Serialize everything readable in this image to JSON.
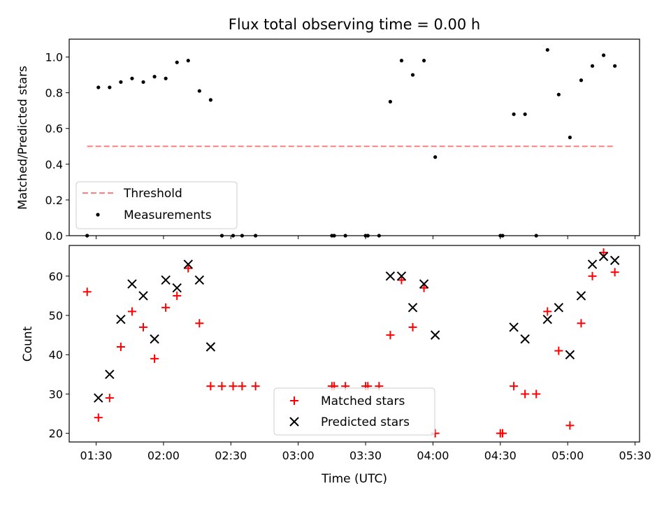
{
  "colors": {
    "threshold": "#ff7f7f",
    "measurements": "#000000",
    "matched": "#ff0000",
    "predicted": "#000000",
    "legend_border": "#cccccc"
  },
  "chart_data": [
    {
      "type": "scatter",
      "title": "Flux total observing time = 0.00 h",
      "ylabel": "Matched/Predicted stars",
      "xlim": [
        "01:18",
        "05:32"
      ],
      "ylim": [
        0,
        1.1
      ],
      "yticks": [
        0.0,
        0.2,
        0.4,
        0.6,
        0.8,
        1.0
      ],
      "ytick_labels": [
        "0.0",
        "0.2",
        "0.4",
        "0.6",
        "0.8",
        "1.0"
      ],
      "xticks": [
        "01:30",
        "02:00",
        "02:30",
        "03:00",
        "03:30",
        "04:00",
        "04:30",
        "05:00",
        "05:30"
      ],
      "legend": {
        "loc": "lower left",
        "entries": [
          "Threshold",
          "Measurements"
        ]
      },
      "series": [
        {
          "name": "Threshold",
          "style": "dashed-line",
          "x": [
            "01:26",
            "05:21"
          ],
          "y": [
            0.5,
            0.5
          ]
        },
        {
          "name": "Measurements",
          "style": "dot",
          "points": [
            [
              "01:26",
              0.0
            ],
            [
              "01:31",
              0.83
            ],
            [
              "01:36",
              0.83
            ],
            [
              "01:41",
              0.86
            ],
            [
              "01:46",
              0.88
            ],
            [
              "01:51",
              0.86
            ],
            [
              "01:56",
              0.89
            ],
            [
              "02:01",
              0.88
            ],
            [
              "02:06",
              0.97
            ],
            [
              "02:11",
              0.98
            ],
            [
              "02:16",
              0.81
            ],
            [
              "02:21",
              0.76
            ],
            [
              "02:26",
              0.0
            ],
            [
              "02:31",
              0.0
            ],
            [
              "02:35",
              0.0
            ],
            [
              "02:41",
              0.0
            ],
            [
              "03:15",
              0.0
            ],
            [
              "03:16",
              0.0
            ],
            [
              "03:21",
              0.0
            ],
            [
              "03:30",
              0.0
            ],
            [
              "03:31",
              0.0
            ],
            [
              "03:36",
              0.0
            ],
            [
              "03:41",
              0.75
            ],
            [
              "03:46",
              0.98
            ],
            [
              "03:51",
              0.9
            ],
            [
              "03:56",
              0.98
            ],
            [
              "04:01",
              0.44
            ],
            [
              "04:30",
              0.0
            ],
            [
              "04:31",
              0.0
            ],
            [
              "04:36",
              0.68
            ],
            [
              "04:41",
              0.68
            ],
            [
              "04:46",
              0.0
            ],
            [
              "04:51",
              1.04
            ],
            [
              "04:56",
              0.79
            ],
            [
              "05:01",
              0.55
            ],
            [
              "05:06",
              0.87
            ],
            [
              "05:11",
              0.95
            ],
            [
              "05:16",
              1.01
            ],
            [
              "05:21",
              0.95
            ]
          ]
        }
      ]
    },
    {
      "type": "scatter",
      "ylabel": "Count",
      "xlabel": "Time (UTC)",
      "xlim": [
        "01:18",
        "05:32"
      ],
      "ylim": [
        17.8,
        67.8
      ],
      "yticks": [
        20,
        30,
        40,
        50,
        60
      ],
      "ytick_labels": [
        "20",
        "30",
        "40",
        "50",
        "60"
      ],
      "xticks": [
        "01:30",
        "02:00",
        "02:30",
        "03:00",
        "03:30",
        "04:00",
        "04:30",
        "05:00",
        "05:30"
      ],
      "xtick_labels": [
        "01:30",
        "02:00",
        "02:30",
        "03:00",
        "03:30",
        "04:00",
        "04:30",
        "05:00",
        "05:30"
      ],
      "legend": {
        "loc": "lower center",
        "entries": [
          "Matched stars",
          "Predicted stars"
        ]
      },
      "series": [
        {
          "name": "Matched stars",
          "marker": "+",
          "points": [
            [
              "01:26",
              56
            ],
            [
              "01:31",
              24
            ],
            [
              "01:36",
              29
            ],
            [
              "01:41",
              42
            ],
            [
              "01:46",
              51
            ],
            [
              "01:51",
              47
            ],
            [
              "01:56",
              39
            ],
            [
              "02:01",
              52
            ],
            [
              "02:06",
              55
            ],
            [
              "02:11",
              62
            ],
            [
              "02:16",
              48
            ],
            [
              "02:21",
              32
            ],
            [
              "02:26",
              32
            ],
            [
              "02:31",
              32
            ],
            [
              "02:35",
              32
            ],
            [
              "02:41",
              32
            ],
            [
              "03:15",
              32
            ],
            [
              "03:16",
              32
            ],
            [
              "03:21",
              32
            ],
            [
              "03:30",
              32
            ],
            [
              "03:31",
              32
            ],
            [
              "03:36",
              32
            ],
            [
              "03:41",
              45
            ],
            [
              "03:46",
              59
            ],
            [
              "03:51",
              47
            ],
            [
              "03:56",
              57
            ],
            [
              "04:01",
              20
            ],
            [
              "04:30",
              20
            ],
            [
              "04:31",
              20
            ],
            [
              "04:36",
              32
            ],
            [
              "04:41",
              30
            ],
            [
              "04:46",
              30
            ],
            [
              "04:51",
              51
            ],
            [
              "04:56",
              41
            ],
            [
              "05:01",
              22
            ],
            [
              "05:06",
              48
            ],
            [
              "05:11",
              60
            ],
            [
              "05:16",
              66
            ],
            [
              "05:21",
              61
            ]
          ]
        },
        {
          "name": "Predicted stars",
          "marker": "x",
          "points": [
            [
              "01:31",
              29
            ],
            [
              "01:36",
              35
            ],
            [
              "01:41",
              49
            ],
            [
              "01:46",
              58
            ],
            [
              "01:51",
              55
            ],
            [
              "01:56",
              44
            ],
            [
              "02:01",
              59
            ],
            [
              "02:06",
              57
            ],
            [
              "02:11",
              63
            ],
            [
              "02:16",
              59
            ],
            [
              "02:21",
              42
            ],
            [
              "03:41",
              60
            ],
            [
              "03:46",
              60
            ],
            [
              "03:51",
              52
            ],
            [
              "03:56",
              58
            ],
            [
              "04:01",
              45
            ],
            [
              "04:36",
              47
            ],
            [
              "04:41",
              44
            ],
            [
              "04:51",
              49
            ],
            [
              "04:56",
              52
            ],
            [
              "05:01",
              40
            ],
            [
              "05:06",
              55
            ],
            [
              "05:11",
              63
            ],
            [
              "05:16",
              65
            ],
            [
              "05:21",
              64
            ]
          ]
        }
      ]
    }
  ]
}
